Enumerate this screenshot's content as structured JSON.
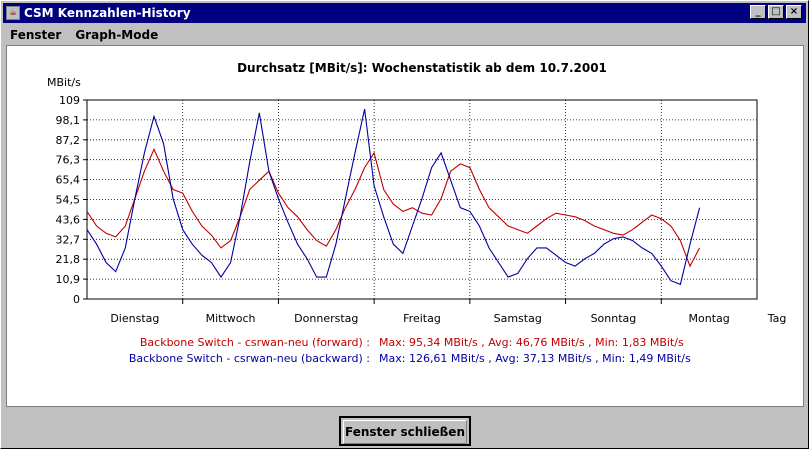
{
  "window": {
    "title": "CSM Kennzahlen-History",
    "controls": [
      "minimize",
      "maximize",
      "close"
    ]
  },
  "menu": [
    "Fenster",
    "Graph-Mode"
  ],
  "chart_data": {
    "type": "line",
    "title": "Durchsatz [MBit/s]: Wochenstatistik ab dem 10.7.2001",
    "ylabel": "MBit/s",
    "xlabel": "Tag",
    "ylim": [
      0,
      109
    ],
    "yticks": [
      "0",
      "10,9",
      "21,8",
      "32,7",
      "43,6",
      "54,5",
      "65,4",
      "76,3",
      "87,2",
      "98,1",
      "109"
    ],
    "categories": [
      "Dienstag",
      "Mittwoch",
      "Donnerstag",
      "Freitag",
      "Samstag",
      "Sonntag",
      "Montag"
    ],
    "grid": true,
    "series": [
      {
        "name": "Backbone Switch - csrwan-neu (forward)",
        "color": "#c00000",
        "stats_label": "Max: 95,34 MBit/s , Avg: 46,76 MBit/s , Min: 1,83 MBit/s",
        "x": [
          0,
          0.1,
          0.2,
          0.3,
          0.4,
          0.5,
          0.6,
          0.7,
          0.8,
          0.9,
          1,
          1.1,
          1.2,
          1.3,
          1.4,
          1.5,
          1.6,
          1.7,
          1.8,
          1.9,
          2,
          2.1,
          2.2,
          2.3,
          2.4,
          2.5,
          2.6,
          2.7,
          2.8,
          2.9,
          3,
          3.1,
          3.2,
          3.3,
          3.4,
          3.5,
          3.6,
          3.7,
          3.8,
          3.9,
          4,
          4.1,
          4.2,
          4.3,
          4.4,
          4.5,
          4.6,
          4.7,
          4.8,
          4.9,
          5,
          5.1,
          5.2,
          5.3,
          5.4,
          5.5,
          5.6,
          5.7,
          5.8,
          5.9,
          6,
          6.1,
          6.2,
          6.3,
          6.4
        ],
        "values": [
          48,
          40,
          36,
          34,
          40,
          55,
          70,
          82,
          70,
          60,
          58,
          48,
          40,
          35,
          28,
          32,
          45,
          60,
          65,
          70,
          58,
          50,
          45,
          38,
          32,
          29,
          38,
          50,
          60,
          72,
          80,
          60,
          52,
          48,
          50,
          47,
          46,
          55,
          70,
          74,
          72,
          60,
          50,
          45,
          40,
          38,
          36,
          40,
          44,
          47,
          46,
          45,
          43,
          40,
          38,
          36,
          35,
          38,
          42,
          46,
          44,
          40,
          32,
          18,
          28
        ]
      },
      {
        "name": "Backbone Switch - csrwan-neu (backward)",
        "color": "#0000a0",
        "stats_label": "Max: 126,61 MBit/s , Avg: 37,13 MBit/s , Min: 1,49 MBit/s",
        "x": [
          0,
          0.1,
          0.2,
          0.3,
          0.4,
          0.5,
          0.6,
          0.7,
          0.8,
          0.9,
          1,
          1.1,
          1.2,
          1.3,
          1.4,
          1.5,
          1.6,
          1.7,
          1.8,
          1.9,
          2,
          2.1,
          2.2,
          2.3,
          2.4,
          2.5,
          2.6,
          2.7,
          2.8,
          2.9,
          3,
          3.1,
          3.2,
          3.3,
          3.4,
          3.5,
          3.6,
          3.7,
          3.8,
          3.9,
          4,
          4.1,
          4.2,
          4.3,
          4.4,
          4.5,
          4.6,
          4.7,
          4.8,
          4.9,
          5,
          5.1,
          5.2,
          5.3,
          5.4,
          5.5,
          5.6,
          5.7,
          5.8,
          5.9,
          6,
          6.1,
          6.2,
          6.3,
          6.4
        ],
        "values": [
          38,
          30,
          20,
          15,
          28,
          55,
          80,
          100,
          85,
          55,
          38,
          30,
          24,
          20,
          12,
          20,
          45,
          75,
          102,
          70,
          55,
          42,
          30,
          22,
          12,
          12,
          30,
          55,
          80,
          104,
          62,
          45,
          30,
          25,
          40,
          55,
          72,
          80,
          65,
          50,
          48,
          40,
          28,
          20,
          12,
          14,
          22,
          28,
          28,
          24,
          20,
          18,
          22,
          25,
          30,
          33,
          34,
          32,
          28,
          25,
          18,
          10,
          8,
          30,
          50
        ]
      }
    ]
  },
  "button": {
    "close_label": "Fenster schließen"
  }
}
